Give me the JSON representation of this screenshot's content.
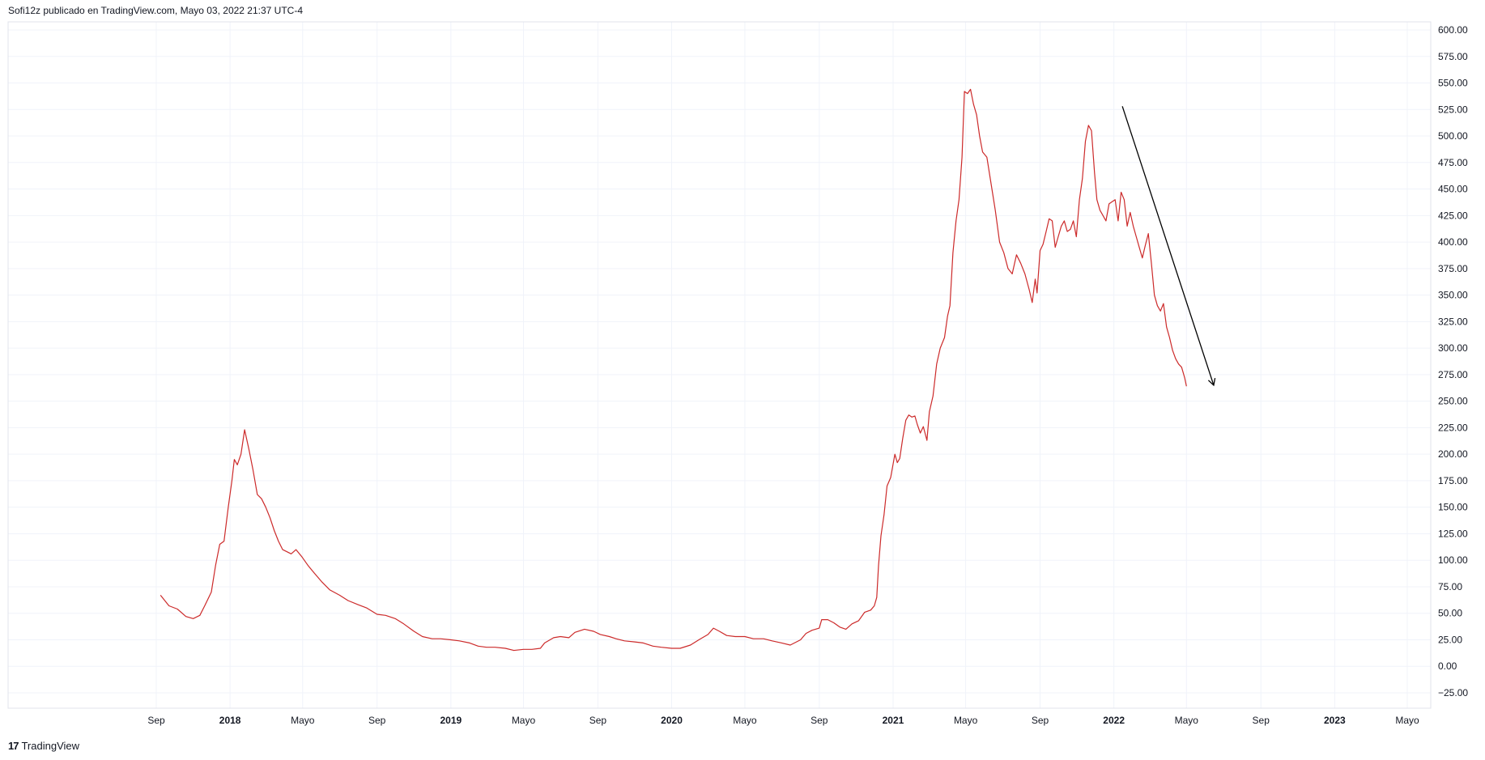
{
  "header": {
    "published_by": "Sofi12z publicado en TradingView.com, Mayo 03, 2022 21:37 UTC-4"
  },
  "footer": {
    "logo_mark": "17",
    "brand": "TradingView"
  },
  "colors": {
    "line": "#cc2a2a",
    "grid": "#f0f3fa",
    "axis_text": "#131722",
    "annotation": "#000000"
  },
  "chart_data": {
    "type": "line",
    "title": "",
    "xlabel": "",
    "ylabel": "",
    "ylim": [
      -25,
      600
    ],
    "y_ticks": [
      "600.00",
      "575.00",
      "550.00",
      "525.00",
      "500.00",
      "475.00",
      "450.00",
      "425.00",
      "400.00",
      "375.00",
      "350.00",
      "325.00",
      "300.00",
      "275.00",
      "250.00",
      "225.00",
      "200.00",
      "175.00",
      "150.00",
      "125.00",
      "100.00",
      "75.00",
      "50.00",
      "25.00",
      "0.00",
      "−25.00"
    ],
    "x_ticks": [
      {
        "label": "Sep",
        "date": "2017-09-01",
        "bold": false
      },
      {
        "label": "2018",
        "date": "2018-01-01",
        "bold": true
      },
      {
        "label": "Mayo",
        "date": "2018-05-01",
        "bold": false
      },
      {
        "label": "Sep",
        "date": "2018-09-01",
        "bold": false
      },
      {
        "label": "2019",
        "date": "2019-01-01",
        "bold": true
      },
      {
        "label": "Mayo",
        "date": "2019-05-01",
        "bold": false
      },
      {
        "label": "Sep",
        "date": "2019-09-01",
        "bold": false
      },
      {
        "label": "2020",
        "date": "2020-01-01",
        "bold": true
      },
      {
        "label": "Mayo",
        "date": "2020-05-01",
        "bold": false
      },
      {
        "label": "Sep",
        "date": "2020-09-01",
        "bold": false
      },
      {
        "label": "2021",
        "date": "2021-01-01",
        "bold": true
      },
      {
        "label": "Mayo",
        "date": "2021-05-01",
        "bold": false
      },
      {
        "label": "Sep",
        "date": "2021-09-01",
        "bold": false
      },
      {
        "label": "2022",
        "date": "2022-01-01",
        "bold": true
      },
      {
        "label": "Mayo",
        "date": "2022-05-01",
        "bold": false
      },
      {
        "label": "Sep",
        "date": "2022-09-01",
        "bold": false
      },
      {
        "label": "2023",
        "date": "2023-01-01",
        "bold": true
      },
      {
        "label": "Mayo",
        "date": "2023-05-01",
        "bold": false
      }
    ],
    "grid": true,
    "series": [
      {
        "points": [
          [
            "2017-09-08",
            67
          ],
          [
            "2017-09-22",
            57
          ],
          [
            "2017-10-06",
            54
          ],
          [
            "2017-10-20",
            47
          ],
          [
            "2017-11-01",
            45
          ],
          [
            "2017-11-12",
            48
          ],
          [
            "2017-11-20",
            57
          ],
          [
            "2017-12-01",
            70
          ],
          [
            "2017-12-08",
            95
          ],
          [
            "2017-12-15",
            115
          ],
          [
            "2017-12-22",
            118
          ],
          [
            "2017-12-29",
            150
          ],
          [
            "2018-01-04",
            175
          ],
          [
            "2018-01-08",
            195
          ],
          [
            "2018-01-13",
            190
          ],
          [
            "2018-01-19",
            200
          ],
          [
            "2018-01-25",
            223
          ],
          [
            "2018-02-01",
            205
          ],
          [
            "2018-02-08",
            185
          ],
          [
            "2018-02-15",
            162
          ],
          [
            "2018-02-22",
            158
          ],
          [
            "2018-03-01",
            150
          ],
          [
            "2018-03-08",
            140
          ],
          [
            "2018-03-15",
            128
          ],
          [
            "2018-03-22",
            118
          ],
          [
            "2018-03-29",
            110
          ],
          [
            "2018-04-05",
            108
          ],
          [
            "2018-04-12",
            106
          ],
          [
            "2018-04-20",
            110
          ],
          [
            "2018-04-30",
            103
          ],
          [
            "2018-05-10",
            95
          ],
          [
            "2018-05-20",
            88
          ],
          [
            "2018-06-01",
            80
          ],
          [
            "2018-06-15",
            72
          ],
          [
            "2018-07-01",
            67
          ],
          [
            "2018-07-15",
            62
          ],
          [
            "2018-08-01",
            58
          ],
          [
            "2018-08-15",
            55
          ],
          [
            "2018-09-01",
            49
          ],
          [
            "2018-09-15",
            48
          ],
          [
            "2018-10-01",
            45
          ],
          [
            "2018-10-15",
            40
          ],
          [
            "2018-11-01",
            33
          ],
          [
            "2018-11-15",
            28
          ],
          [
            "2018-12-01",
            26
          ],
          [
            "2018-12-15",
            26
          ],
          [
            "2019-01-01",
            25
          ],
          [
            "2019-01-15",
            24
          ],
          [
            "2019-02-01",
            22
          ],
          [
            "2019-02-15",
            19
          ],
          [
            "2019-03-01",
            18
          ],
          [
            "2019-03-15",
            18
          ],
          [
            "2019-04-01",
            17
          ],
          [
            "2019-04-15",
            15
          ],
          [
            "2019-05-01",
            16
          ],
          [
            "2019-05-15",
            16
          ],
          [
            "2019-05-29",
            17
          ],
          [
            "2019-06-05",
            22
          ],
          [
            "2019-06-20",
            27
          ],
          [
            "2019-07-01",
            28
          ],
          [
            "2019-07-15",
            27
          ],
          [
            "2019-07-25",
            32
          ],
          [
            "2019-08-10",
            35
          ],
          [
            "2019-08-25",
            33
          ],
          [
            "2019-09-05",
            30
          ],
          [
            "2019-09-20",
            28
          ],
          [
            "2019-10-01",
            26
          ],
          [
            "2019-10-15",
            24
          ],
          [
            "2019-11-01",
            23
          ],
          [
            "2019-11-15",
            22
          ],
          [
            "2019-12-01",
            19
          ],
          [
            "2019-12-15",
            18
          ],
          [
            "2020-01-01",
            17
          ],
          [
            "2020-01-15",
            17
          ],
          [
            "2020-02-01",
            20
          ],
          [
            "2020-02-15",
            25
          ],
          [
            "2020-03-01",
            30
          ],
          [
            "2020-03-10",
            36
          ],
          [
            "2020-03-20",
            33
          ],
          [
            "2020-04-01",
            29
          ],
          [
            "2020-04-15",
            28
          ],
          [
            "2020-05-01",
            28
          ],
          [
            "2020-05-15",
            26
          ],
          [
            "2020-06-01",
            26
          ],
          [
            "2020-06-15",
            24
          ],
          [
            "2020-07-01",
            22
          ],
          [
            "2020-07-15",
            20
          ],
          [
            "2020-08-01",
            25
          ],
          [
            "2020-08-10",
            31
          ],
          [
            "2020-08-20",
            34
          ],
          [
            "2020-09-01",
            36
          ],
          [
            "2020-09-05",
            44
          ],
          [
            "2020-09-15",
            44
          ],
          [
            "2020-09-25",
            41
          ],
          [
            "2020-10-05",
            37
          ],
          [
            "2020-10-15",
            35
          ],
          [
            "2020-10-25",
            40
          ],
          [
            "2020-11-05",
            43
          ],
          [
            "2020-11-15",
            51
          ],
          [
            "2020-11-25",
            53
          ],
          [
            "2020-12-01",
            57
          ],
          [
            "2020-12-05",
            65
          ],
          [
            "2020-12-08",
            95
          ],
          [
            "2020-12-12",
            123
          ],
          [
            "2020-12-17",
            143
          ],
          [
            "2020-12-22",
            170
          ],
          [
            "2020-12-28",
            178
          ],
          [
            "2021-01-04",
            200
          ],
          [
            "2021-01-08",
            192
          ],
          [
            "2021-01-12",
            196
          ],
          [
            "2021-01-17",
            215
          ],
          [
            "2021-01-22",
            232
          ],
          [
            "2021-01-27",
            237
          ],
          [
            "2021-02-01",
            235
          ],
          [
            "2021-02-06",
            236
          ],
          [
            "2021-02-10",
            228
          ],
          [
            "2021-02-15",
            220
          ],
          [
            "2021-02-20",
            226
          ],
          [
            "2021-02-26",
            213
          ],
          [
            "2021-03-02",
            240
          ],
          [
            "2021-03-08",
            255
          ],
          [
            "2021-03-14",
            285
          ],
          [
            "2021-03-20",
            300
          ],
          [
            "2021-03-27",
            310
          ],
          [
            "2021-04-01",
            330
          ],
          [
            "2021-04-05",
            340
          ],
          [
            "2021-04-10",
            390
          ],
          [
            "2021-04-15",
            420
          ],
          [
            "2021-04-20",
            440
          ],
          [
            "2021-04-25",
            480
          ],
          [
            "2021-04-29",
            542
          ],
          [
            "2021-05-04",
            540
          ],
          [
            "2021-05-09",
            544
          ],
          [
            "2021-05-14",
            530
          ],
          [
            "2021-05-19",
            520
          ],
          [
            "2021-05-24",
            500
          ],
          [
            "2021-05-29",
            485
          ],
          [
            "2021-06-05",
            480
          ],
          [
            "2021-06-12",
            455
          ],
          [
            "2021-06-19",
            430
          ],
          [
            "2021-06-26",
            400
          ],
          [
            "2021-07-03",
            390
          ],
          [
            "2021-07-10",
            375
          ],
          [
            "2021-07-17",
            370
          ],
          [
            "2021-07-24",
            388
          ],
          [
            "2021-07-31",
            380
          ],
          [
            "2021-08-07",
            370
          ],
          [
            "2021-08-14",
            355
          ],
          [
            "2021-08-19",
            343
          ],
          [
            "2021-08-24",
            365
          ],
          [
            "2021-08-27",
            352
          ],
          [
            "2021-09-01",
            392
          ],
          [
            "2021-09-06",
            398
          ],
          [
            "2021-09-11",
            410
          ],
          [
            "2021-09-16",
            422
          ],
          [
            "2021-09-21",
            420
          ],
          [
            "2021-09-26",
            395
          ],
          [
            "2021-10-01",
            405
          ],
          [
            "2021-10-06",
            415
          ],
          [
            "2021-10-11",
            420
          ],
          [
            "2021-10-16",
            410
          ],
          [
            "2021-10-21",
            412
          ],
          [
            "2021-10-26",
            420
          ],
          [
            "2021-10-31",
            405
          ],
          [
            "2021-11-05",
            440
          ],
          [
            "2021-11-10",
            460
          ],
          [
            "2021-11-15",
            495
          ],
          [
            "2021-11-20",
            510
          ],
          [
            "2021-11-25",
            505
          ],
          [
            "2021-11-30",
            465
          ],
          [
            "2021-12-04",
            440
          ],
          [
            "2021-12-09",
            430
          ],
          [
            "2021-12-14",
            425
          ],
          [
            "2021-12-19",
            420
          ],
          [
            "2021-12-24",
            436
          ],
          [
            "2021-12-29",
            438
          ],
          [
            "2022-01-03",
            440
          ],
          [
            "2022-01-08",
            420
          ],
          [
            "2022-01-13",
            447
          ],
          [
            "2022-01-18",
            440
          ],
          [
            "2022-01-23",
            415
          ],
          [
            "2022-01-28",
            428
          ],
          [
            "2022-02-02",
            415
          ],
          [
            "2022-02-07",
            405
          ],
          [
            "2022-02-12",
            395
          ],
          [
            "2022-02-17",
            385
          ],
          [
            "2022-02-22",
            397
          ],
          [
            "2022-02-27",
            408
          ],
          [
            "2022-03-04",
            380
          ],
          [
            "2022-03-09",
            350
          ],
          [
            "2022-03-14",
            340
          ],
          [
            "2022-03-19",
            335
          ],
          [
            "2022-03-24",
            342
          ],
          [
            "2022-03-29",
            320
          ],
          [
            "2022-04-03",
            310
          ],
          [
            "2022-04-08",
            298
          ],
          [
            "2022-04-13",
            290
          ],
          [
            "2022-04-18",
            285
          ],
          [
            "2022-04-23",
            282
          ],
          [
            "2022-04-28",
            272
          ],
          [
            "2022-05-01",
            264
          ]
        ]
      }
    ],
    "annotation_arrow": {
      "from": [
        "2022-01-15",
        528
      ],
      "to": [
        "2022-06-15",
        265
      ]
    }
  }
}
